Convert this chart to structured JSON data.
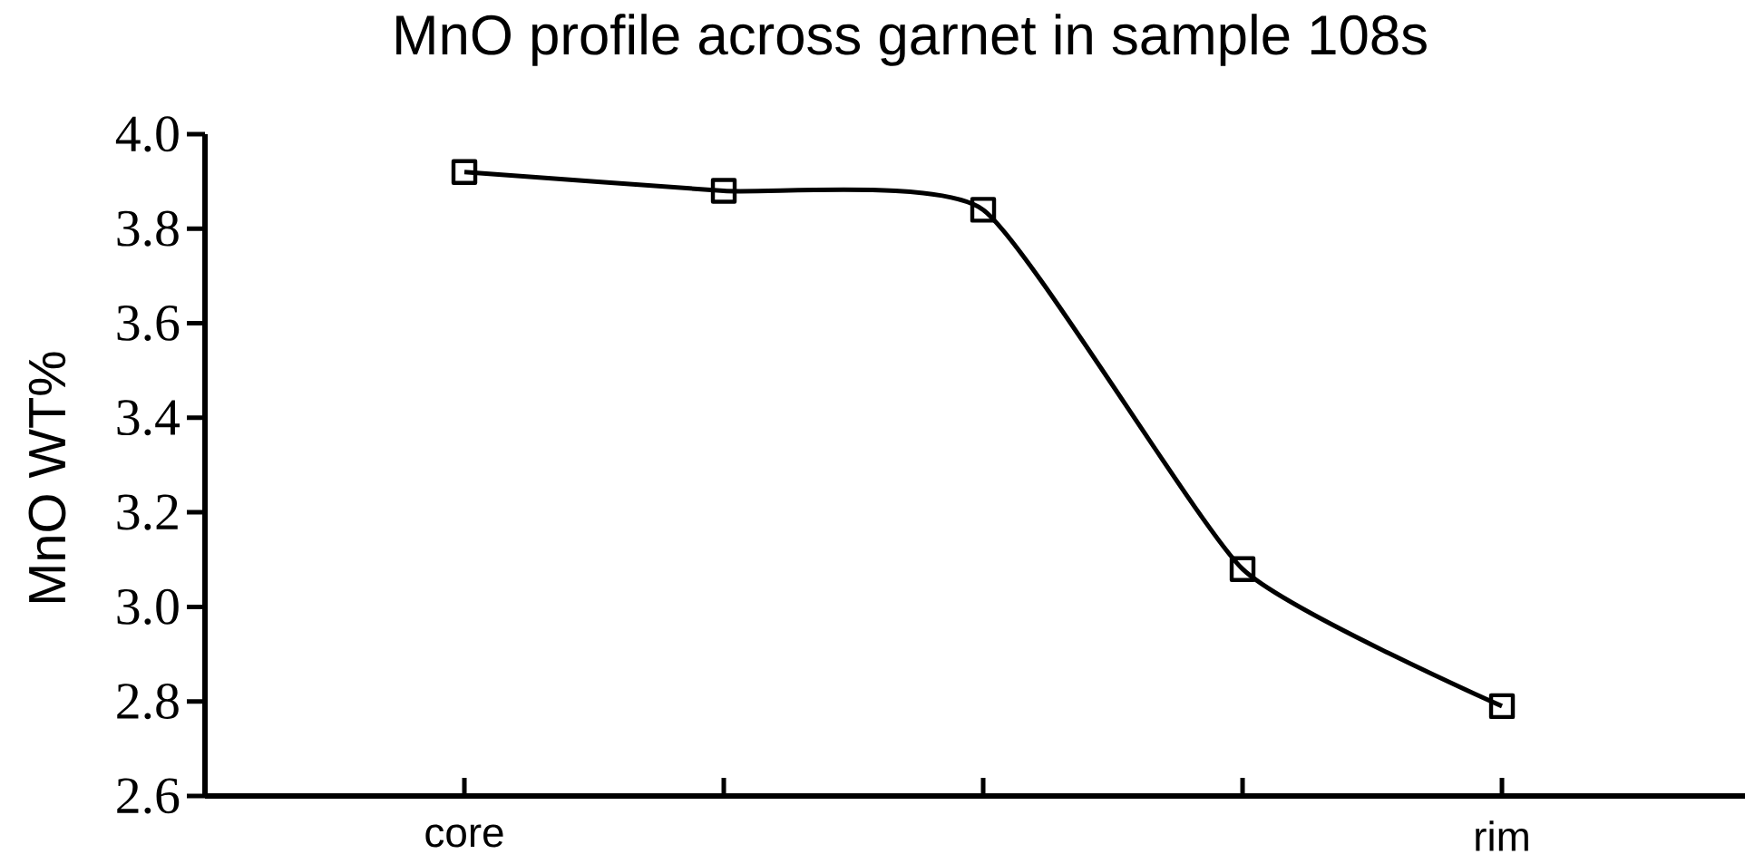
{
  "chart_data": {
    "type": "line",
    "title": "MnO profile across garnet in sample 108s",
    "ylabel": "MnO WT%",
    "categories": [
      "core",
      null,
      null,
      null,
      "rim"
    ],
    "values": [
      3.92,
      3.88,
      3.84,
      3.08,
      2.79
    ],
    "color": "#000000",
    "ylim": [
      2.6,
      4.0
    ],
    "yticks": [
      {
        "value": 2.6,
        "label": "2.6"
      },
      {
        "value": 2.8,
        "label": "2.8"
      },
      {
        "value": 3.0,
        "label": "3.0"
      },
      {
        "value": 3.2,
        "label": "3.2"
      },
      {
        "value": 3.4,
        "label": "3.4"
      },
      {
        "value": 3.6,
        "label": "3.6"
      },
      {
        "value": 3.8,
        "label": "3.8"
      },
      {
        "value": 4.0,
        "label": "4.0"
      }
    ],
    "marker": "square",
    "line_style": "solid"
  }
}
